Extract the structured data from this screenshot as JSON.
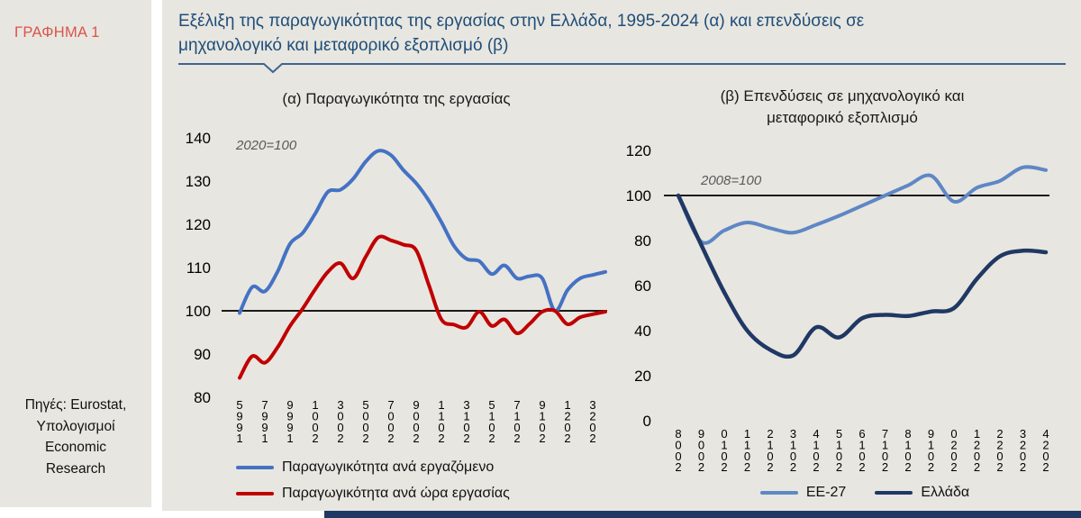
{
  "sidebar": {
    "figure_label": "ΓΡΑΦΗΜΑ 1",
    "source_lines": [
      "Πηγές: Eurostat,",
      "Υπολογισμοί",
      "Economic",
      "Research"
    ]
  },
  "header": {
    "title": "Εξέλιξη της παραγωγικότητας της εργασίας στην Ελλάδα, 1995-2024 (α) και επενδύσεις σε μηχανολογικό και μεταφορικό εξοπλισμό (β)"
  },
  "colors": {
    "title_blue": "#1F4E79",
    "figure_label_red": "#D8544A",
    "panel_bg": "#E8E6E0",
    "bottom_bar_navy": "#1F3864",
    "baseline_black": "#1A1A1A",
    "annotation_gray": "#595959",
    "divider_blue": "#3E6491"
  },
  "chart_data": [
    {
      "type": "line",
      "title": "(α) Παραγωγικότητα της εργασίας",
      "annotation": "2020=100",
      "x": [
        1995,
        1996,
        1997,
        1998,
        1999,
        2000,
        2001,
        2002,
        2003,
        2004,
        2005,
        2006,
        2007,
        2008,
        2009,
        2010,
        2011,
        2012,
        2013,
        2014,
        2015,
        2016,
        2017,
        2018,
        2019,
        2020,
        2021,
        2022,
        2023,
        2024
      ],
      "x_tick_labels": [
        "1995",
        "1997",
        "1999",
        "2001",
        "2003",
        "2005",
        "2007",
        "2009",
        "2011",
        "2013",
        "2015",
        "2017",
        "2019",
        "2021",
        "2023"
      ],
      "yticks": [
        140,
        130,
        120,
        110,
        100,
        90,
        80
      ],
      "ylim": [
        80,
        140
      ],
      "baseline": 100,
      "grid": false,
      "legend_position": "bottom-left",
      "series": [
        {
          "name": "Παραγωγικότητα ανά εργαζόμενο",
          "color": "#4472C4",
          "values": [
            99.5,
            105.5,
            104.5,
            109,
            115.5,
            118,
            122.5,
            127.5,
            128,
            130.5,
            134.5,
            137,
            136,
            132.5,
            129.5,
            125.5,
            120.5,
            115,
            112,
            111.5,
            108.5,
            110.5,
            107.5,
            108,
            107.5,
            100,
            104.8,
            107.5,
            108.3,
            109
          ]
        },
        {
          "name": "Παραγωγικότητα ανά ώρα εργασίας",
          "color": "#C00000",
          "values": [
            84.5,
            89.5,
            88,
            91.5,
            96.5,
            100.5,
            105,
            109,
            111,
            107.5,
            112.5,
            117,
            116.3,
            115.3,
            114,
            106,
            98,
            96.8,
            96.2,
            99.8,
            96.5,
            98,
            94.8,
            97,
            99.8,
            100,
            96.9,
            98.5,
            99.2,
            99.8
          ]
        }
      ]
    },
    {
      "type": "line",
      "title": "(β) Επενδύσεις σε μηχανολογικό και μεταφορικό εξοπλισμό",
      "annotation": "2008=100",
      "x": [
        2008,
        2009,
        2010,
        2011,
        2012,
        2013,
        2014,
        2015,
        2016,
        2017,
        2018,
        2019,
        2020,
        2021,
        2022,
        2023,
        2024
      ],
      "x_tick_labels": [
        "2008",
        "2009",
        "2010",
        "2011",
        "2012",
        "2013",
        "2014",
        "2015",
        "2016",
        "2017",
        "2018",
        "2019",
        "2020",
        "2021",
        "2022",
        "2023",
        "2024"
      ],
      "yticks": [
        120,
        100,
        80,
        60,
        40,
        20,
        0
      ],
      "ylim": [
        0,
        120
      ],
      "baseline": 100,
      "grid": false,
      "legend_position": "bottom-center",
      "series": [
        {
          "name": "ΕΕ-27",
          "color": "#5E87C5",
          "values": [
            100,
            79.5,
            84.5,
            88,
            85.5,
            83.5,
            87,
            91,
            95.5,
            100,
            104.5,
            108.8,
            97.3,
            103.5,
            106.5,
            112.5,
            111.3
          ]
        },
        {
          "name": "Ελλάδα",
          "color": "#1F3864",
          "values": [
            100,
            78,
            57,
            40,
            31.5,
            29,
            41.5,
            37,
            45.5,
            47,
            46.5,
            48.5,
            50,
            63,
            73,
            75.5,
            74.8
          ]
        }
      ]
    }
  ]
}
